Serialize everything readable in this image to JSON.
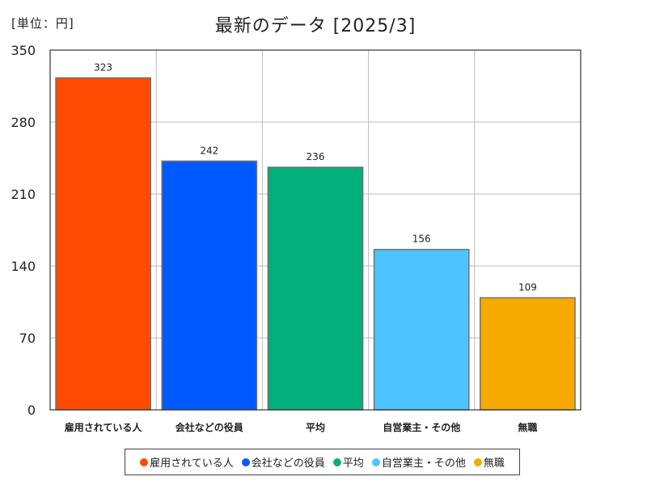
{
  "header": {
    "unit": "[単位：円]",
    "title": "最新のデータ [2025/3]"
  },
  "chart_data": {
    "type": "bar",
    "categories": [
      "雇用されている人",
      "会社などの役員",
      "平均",
      "自営業主・その他",
      "無職"
    ],
    "values": [
      323,
      242,
      236,
      156,
      109
    ],
    "colors": [
      "#ff4b00",
      "#005aff",
      "#03af7a",
      "#4dc4ff",
      "#f6aa00"
    ],
    "ylim": [
      0,
      350
    ],
    "yticks": [
      0,
      70,
      140,
      210,
      280,
      350
    ],
    "grid": true,
    "legend_position": "bottom"
  },
  "legend": {
    "items": [
      "雇用されている人",
      "会社などの役員",
      "平均",
      "自営業主・その他",
      "無職"
    ]
  }
}
